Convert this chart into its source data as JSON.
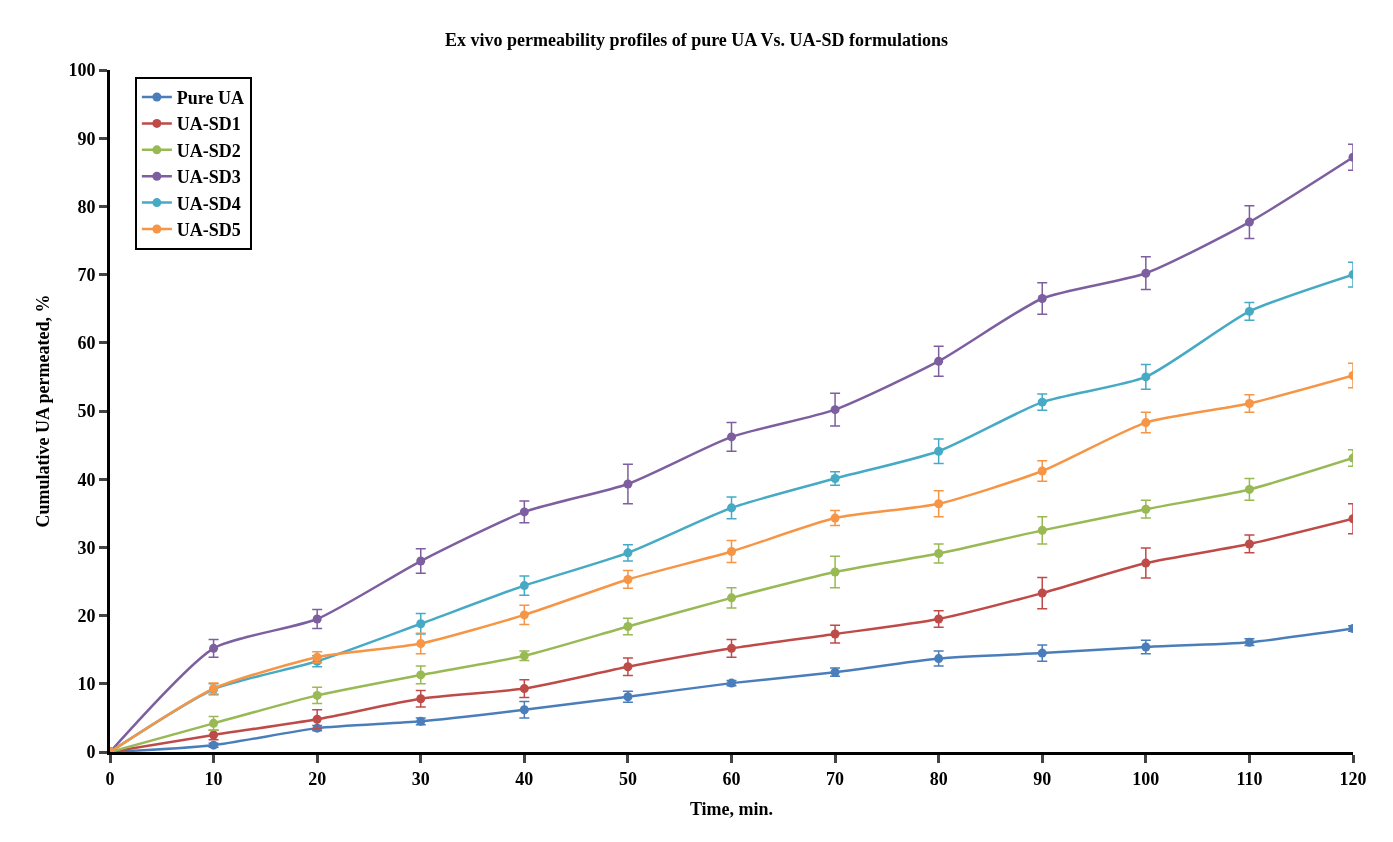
{
  "chart_data": {
    "type": "line",
    "title": "Ex vivo permeability profiles of pure UA Vs. UA-SD formulations",
    "xlabel": "Time, min.",
    "ylabel": "Cumulative UA permeated, %",
    "x": [
      0,
      10,
      20,
      30,
      40,
      50,
      60,
      70,
      80,
      90,
      100,
      110,
      120
    ],
    "xlim": [
      0,
      120
    ],
    "xticks": [
      0,
      10,
      20,
      30,
      40,
      50,
      60,
      70,
      80,
      90,
      100,
      110,
      120
    ],
    "ylim": [
      0,
      100
    ],
    "yticks": [
      0,
      10,
      20,
      30,
      40,
      50,
      60,
      70,
      80,
      90,
      100
    ],
    "legend": "top left",
    "marker": "circle",
    "line_style": "solid",
    "series": [
      {
        "name": "Pure UA",
        "color": "#4a7ebb",
        "values": [
          0,
          1,
          3.5,
          4.5,
          6.2,
          8.1,
          10.1,
          11.7,
          13.7,
          14.5,
          15.4,
          16.1,
          18.1
        ],
        "errors": [
          0,
          0.3,
          0.4,
          0.5,
          1.2,
          0.8,
          0.4,
          0.6,
          1.1,
          1.2,
          1,
          0.5,
          0.4
        ]
      },
      {
        "name": "UA-SD1",
        "color": "#be4b48",
        "values": [
          0,
          2.5,
          4.8,
          7.8,
          9.3,
          12.5,
          15.2,
          17.3,
          19.5,
          23.3,
          27.7,
          30.5,
          34.2
        ],
        "errors": [
          0,
          0.7,
          1.4,
          1.2,
          1.3,
          1.3,
          1.3,
          1.3,
          1.2,
          2.3,
          2.2,
          1.3,
          2.2
        ]
      },
      {
        "name": "UA-SD2",
        "color": "#98b954",
        "values": [
          0,
          4.2,
          8.3,
          11.3,
          14.1,
          18.4,
          22.6,
          26.4,
          29.1,
          32.5,
          35.6,
          38.5,
          43.1
        ],
        "errors": [
          0,
          1,
          1.2,
          1.3,
          0.7,
          1.2,
          1.5,
          2.3,
          1.4,
          2,
          1.3,
          1.6,
          1.2
        ]
      },
      {
        "name": "UA-SD3",
        "color": "#7d5fa0",
        "values": [
          0,
          15.2,
          19.5,
          28,
          35.2,
          39.3,
          46.2,
          50.2,
          57.3,
          66.5,
          70.2,
          77.7,
          87.2
        ],
        "errors": [
          0,
          1.3,
          1.4,
          1.8,
          1.6,
          2.9,
          2.1,
          2.4,
          2.2,
          2.3,
          2.4,
          2.4,
          1.9
        ]
      },
      {
        "name": "UA-SD4",
        "color": "#46aac5",
        "values": [
          0,
          9.2,
          13.3,
          18.8,
          24.4,
          29.2,
          35.8,
          40.1,
          44.1,
          51.3,
          55,
          64.6,
          70
        ],
        "errors": [
          0,
          0.8,
          0.8,
          1.5,
          1.4,
          1.2,
          1.6,
          1,
          1.8,
          1.2,
          1.8,
          1.3,
          1.8
        ]
      },
      {
        "name": "UA-SD5",
        "color": "#f69545",
        "values": [
          0,
          9.3,
          13.9,
          15.9,
          20.1,
          25.3,
          29.4,
          34.3,
          36.4,
          41.2,
          48.3,
          51.1,
          55.2
        ],
        "errors": [
          0,
          0.8,
          0.8,
          1.5,
          1.4,
          1.3,
          1.6,
          1.1,
          1.9,
          1.5,
          1.5,
          1.3,
          1.8
        ]
      }
    ]
  }
}
